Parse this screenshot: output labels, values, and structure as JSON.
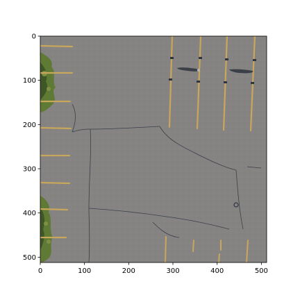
{
  "figure": {
    "type": "image",
    "description_source": "aerial photo of a parking lot rendered in matplotlib axes",
    "xlim": [
      0,
      512
    ],
    "ylim": [
      512,
      0
    ],
    "x_ticks": [
      0,
      100,
      200,
      300,
      400,
      500
    ],
    "y_ticks": [
      0,
      100,
      200,
      300,
      400,
      500
    ],
    "colors": {
      "asphalt": "#858483",
      "asphalt_dark": "#7b7a79",
      "paint": "#c8a65a",
      "crack": "#3a3f48",
      "vegetation": "#5f7a34",
      "vegetation_dark": "#3f5626"
    }
  }
}
